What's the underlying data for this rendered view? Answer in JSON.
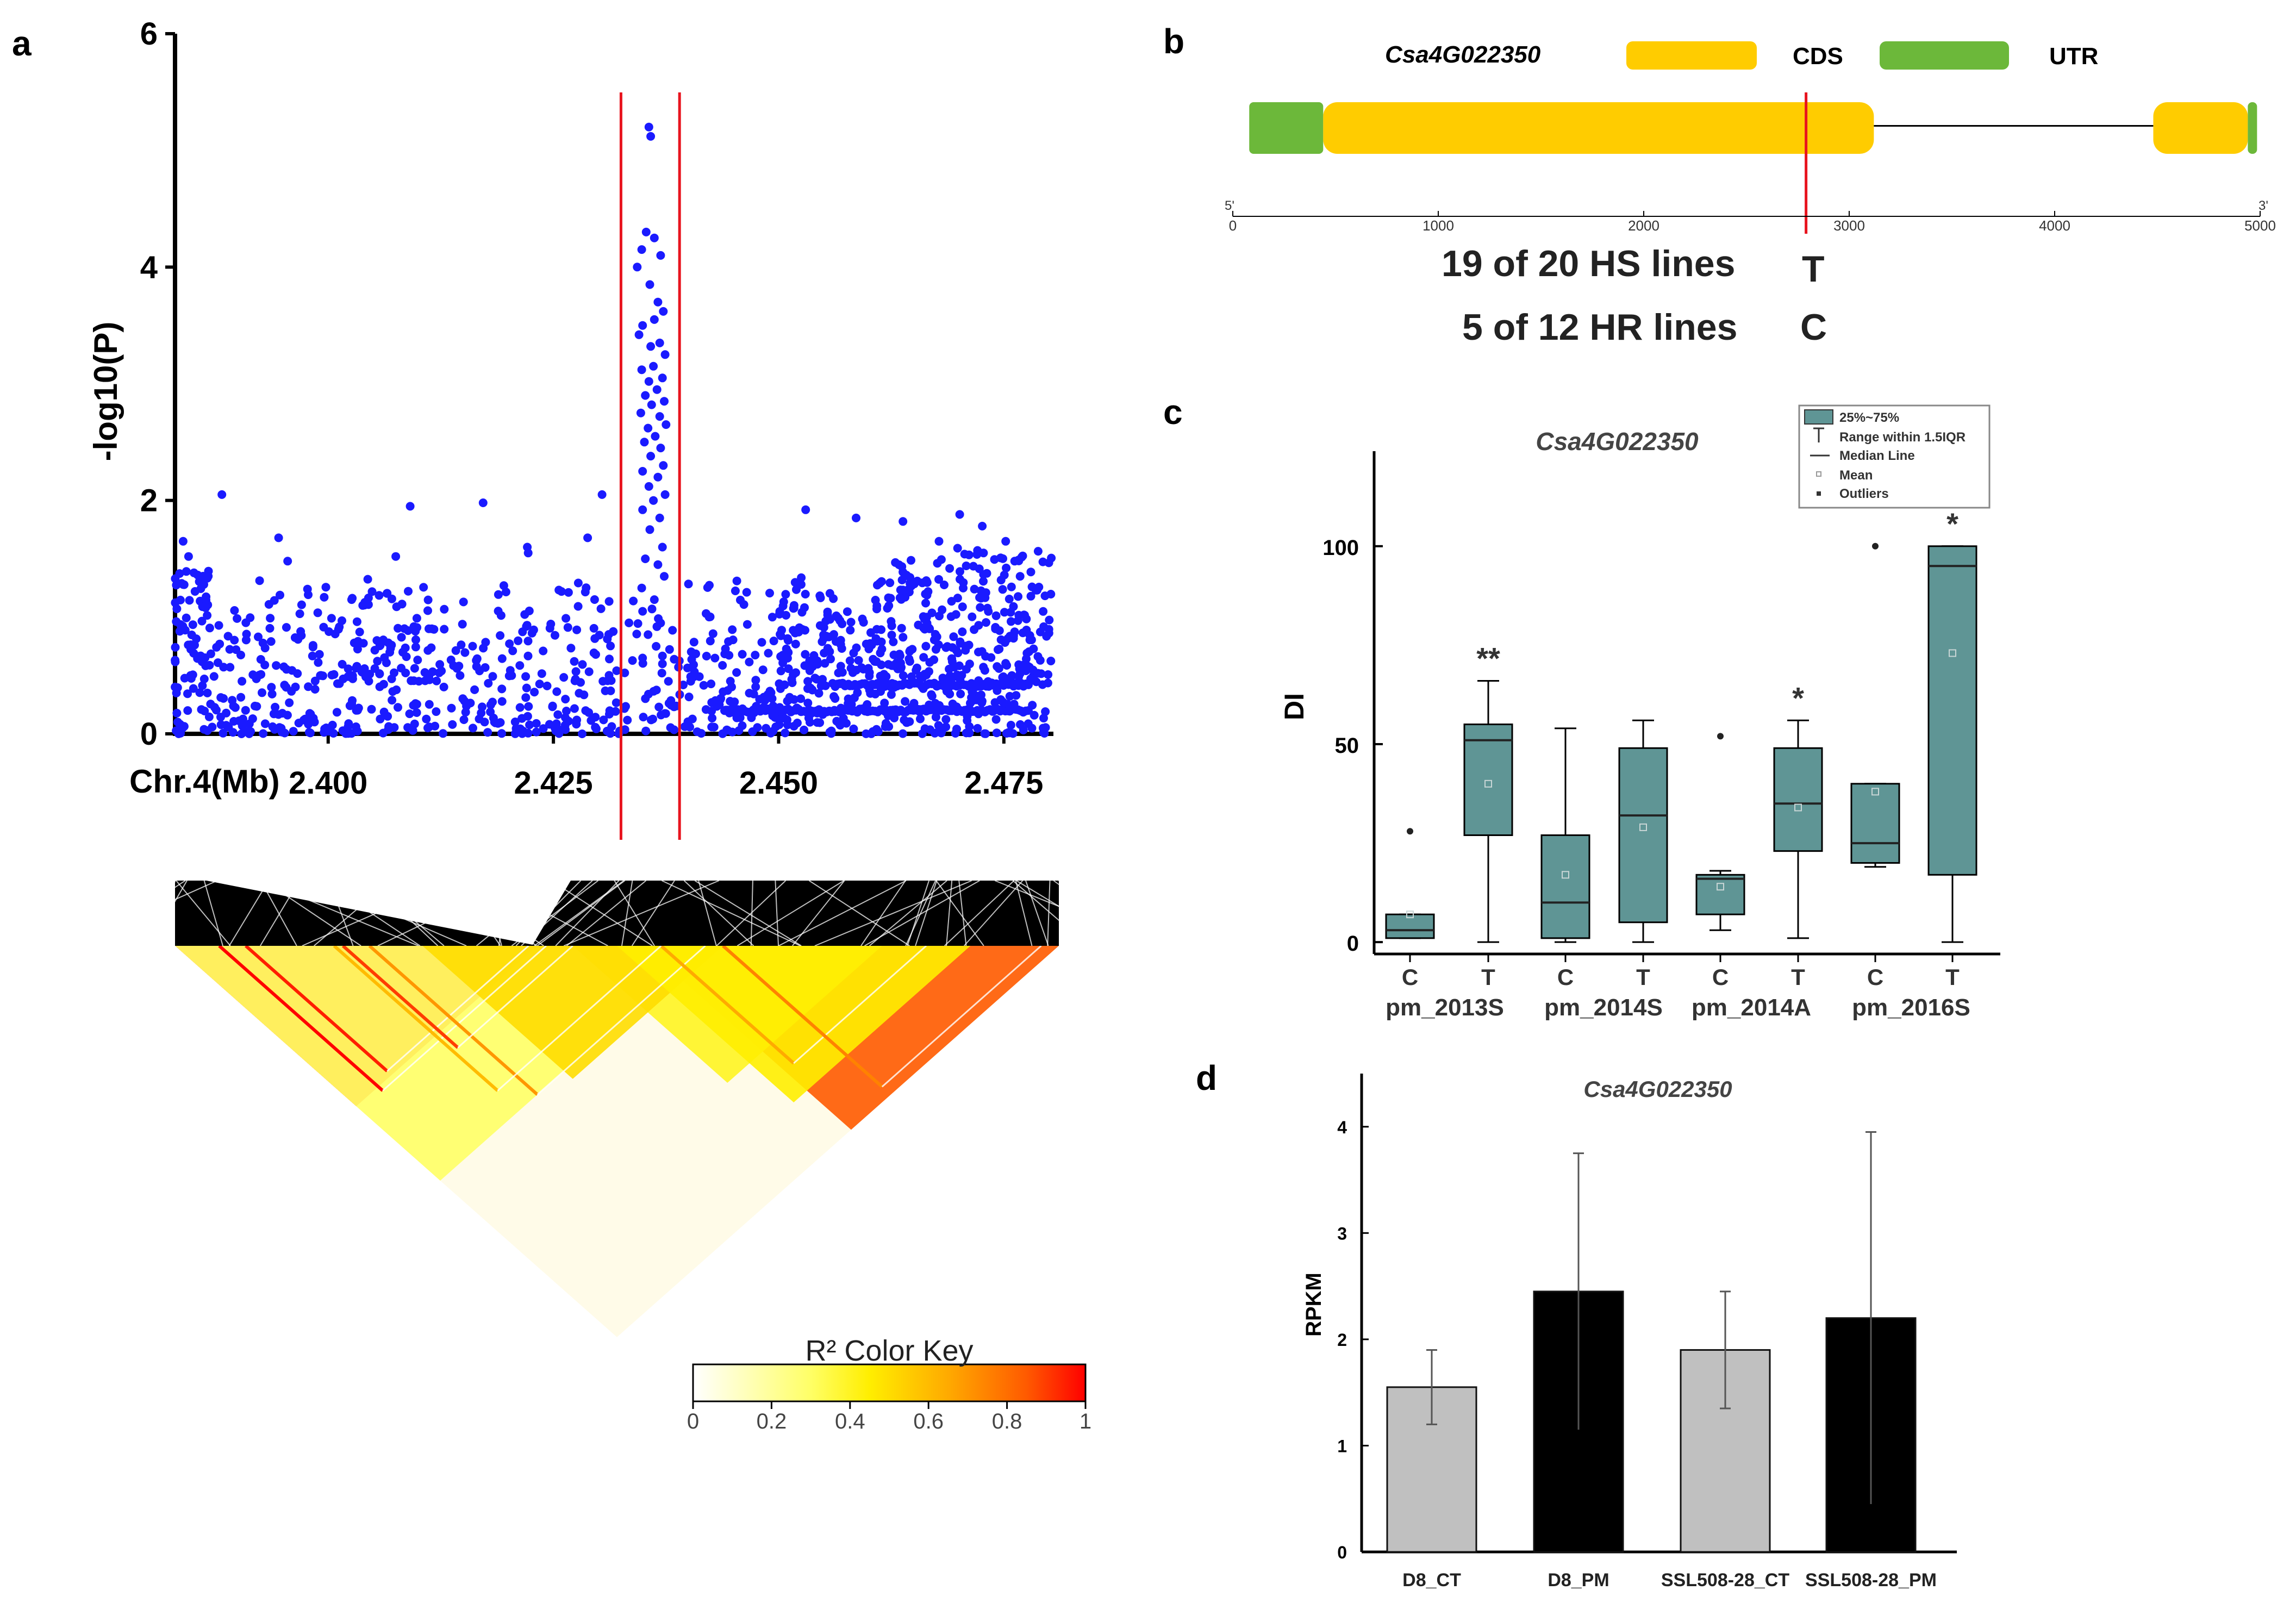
{
  "panels": {
    "a": "a",
    "b": "b",
    "c": "c",
    "d": "d"
  },
  "colors": {
    "dots": "#1a1aff",
    "marker": "#e8141e",
    "cds": "#ffcc00",
    "utr": "#6cb83a",
    "box": "#5f9595",
    "bar_ct": "#c0c0c0",
    "bar_pm": "#000000"
  },
  "chart_data": [
    {
      "id": "a-manhattan",
      "type": "scatter",
      "xlabel": "Chr.4(Mb)",
      "ylabel": "-log10(P)",
      "xlim": [
        2.383,
        2.4805
      ],
      "ylim": [
        0,
        6
      ],
      "xticks": [
        2.4,
        2.425,
        2.45,
        2.475
      ],
      "xtick_labels": [
        "2.400",
        "2.425",
        "2.450",
        "2.475"
      ],
      "yticks": [
        0,
        2,
        4,
        6
      ],
      "ytick_labels": [
        "0",
        "2",
        "4",
        "6"
      ],
      "marker_lines": [
        2.4325,
        2.439
      ],
      "random_seed": 7,
      "background_points_per_band": [
        500,
        300,
        120
      ],
      "background_bands_ylim": [
        [
          0,
          0.45
        ],
        [
          0.45,
          0.9
        ],
        [
          0.9,
          1.35
        ]
      ],
      "highlight_points": [
        [
          2.4356,
          5.2
        ],
        [
          2.4358,
          5.12
        ],
        [
          2.4353,
          4.3
        ],
        [
          2.4362,
          4.25
        ],
        [
          2.4348,
          4.15
        ],
        [
          2.4369,
          4.1
        ],
        [
          2.4343,
          4.0
        ],
        [
          2.4357,
          3.85
        ],
        [
          2.4366,
          3.7
        ],
        [
          2.4372,
          3.62
        ],
        [
          2.4362,
          3.55
        ],
        [
          2.4349,
          3.5
        ],
        [
          2.4345,
          3.42
        ],
        [
          2.4368,
          3.35
        ],
        [
          2.4358,
          3.32
        ],
        [
          2.4374,
          3.25
        ],
        [
          2.4361,
          3.15
        ],
        [
          2.4348,
          3.12
        ],
        [
          2.4371,
          3.05
        ],
        [
          2.4356,
          3.02
        ],
        [
          2.4365,
          2.95
        ],
        [
          2.4352,
          2.9
        ],
        [
          2.4373,
          2.85
        ],
        [
          2.4359,
          2.82
        ],
        [
          2.4347,
          2.75
        ],
        [
          2.4368,
          2.72
        ],
        [
          2.4375,
          2.65
        ],
        [
          2.4355,
          2.62
        ],
        [
          2.4363,
          2.55
        ],
        [
          2.4351,
          2.5
        ],
        [
          2.4369,
          2.45
        ],
        [
          2.4358,
          2.38
        ],
        [
          2.4372,
          2.3
        ],
        [
          2.4349,
          2.25
        ],
        [
          2.4366,
          2.2
        ],
        [
          2.4356,
          2.12
        ],
        [
          2.4374,
          2.05
        ],
        [
          2.4361,
          2.0
        ],
        [
          2.4349,
          1.92
        ],
        [
          2.4368,
          1.85
        ],
        [
          2.4357,
          1.75
        ],
        [
          2.4371,
          1.6
        ],
        [
          2.4352,
          1.5
        ],
        [
          2.4366,
          1.45
        ],
        [
          2.4373,
          1.35
        ],
        [
          2.4348,
          1.25
        ],
        [
          2.4362,
          1.15
        ],
        [
          2.4349,
          1.05
        ],
        [
          2.4369,
          0.95
        ],
        [
          2.4355,
          0.85
        ],
        [
          2.4364,
          0.75
        ],
        [
          2.4349,
          0.65
        ],
        [
          2.4371,
          0.6
        ]
      ],
      "notable_points": [
        [
          2.3882,
          2.05
        ],
        [
          2.3945,
          1.68
        ],
        [
          2.3955,
          1.48
        ],
        [
          2.4026,
          1.15
        ],
        [
          2.4075,
          1.52
        ],
        [
          2.4091,
          1.95
        ],
        [
          2.4172,
          1.98
        ],
        [
          2.4221,
          1.6
        ],
        [
          2.4222,
          1.55
        ],
        [
          2.4288,
          1.68
        ],
        [
          2.4259,
          1.22
        ],
        [
          2.4304,
          2.05
        ],
        [
          2.4297,
          0.68
        ],
        [
          2.453,
          1.92
        ],
        [
          2.4525,
          1.28
        ],
        [
          2.4493,
          1.0
        ],
        [
          2.4586,
          1.85
        ],
        [
          2.4638,
          1.82
        ],
        [
          2.4678,
          1.65
        ],
        [
          2.4701,
          1.88
        ],
        [
          2.4726,
          1.78
        ],
        [
          2.4752,
          1.65
        ],
        [
          2.4762,
          1.48
        ],
        [
          2.4768,
          1.35
        ],
        [
          2.3839,
          1.65
        ],
        [
          2.3845,
          1.52
        ],
        [
          2.3851,
          1.38
        ],
        [
          2.3862,
          1.28
        ]
      ],
      "clusters": [
        {
          "xlim": [
            2.4605,
            2.4805
          ],
          "ylim": [
            0.4,
            1.6
          ],
          "n": 180
        },
        {
          "xlim": [
            2.45,
            2.46
          ],
          "ylim": [
            0.4,
            1.2
          ],
          "n": 60
        },
        {
          "xlim": [
            2.383,
            2.387
          ],
          "ylim": [
            0.6,
            1.4
          ],
          "n": 40
        },
        {
          "xlim": [
            2.399,
            2.413
          ],
          "ylim": [
            0.45,
            1.25
          ],
          "n": 50
        }
      ],
      "hlines": [
        {
          "xlim": [
            2.444,
            2.478
          ],
          "y": 0.2,
          "n": 120
        },
        {
          "xlim": [
            2.456,
            2.478
          ],
          "y": 0.42,
          "n": 80
        }
      ]
    },
    {
      "id": "a-ld",
      "type": "heatmap",
      "legend_title": "R² Color Key",
      "legend_ticks": [
        "0",
        "0.2",
        "0.4",
        "0.6",
        "0.8",
        "1"
      ],
      "blocks": [
        {
          "from": 0.0,
          "to": 0.41,
          "r2": 0.88
        },
        {
          "from": 0.53,
          "to": 1.0,
          "r2": 0.85
        },
        {
          "from": 0.0,
          "to": 0.6,
          "r2": 0.3
        },
        {
          "from": 0.45,
          "to": 0.8,
          "r2": 0.4
        },
        {
          "from": 0.28,
          "to": 0.62,
          "r2": 0.5
        },
        {
          "from": 0.5,
          "to": 0.9,
          "r2": 0.45
        }
      ],
      "band_lines": [
        {
          "from": 0.05,
          "to": 0.42,
          "r2": 1.0
        },
        {
          "from": 0.08,
          "to": 0.4,
          "r2": 0.95
        },
        {
          "from": 0.22,
          "to": 0.6,
          "r2": 0.7
        },
        {
          "from": 0.19,
          "to": 0.45,
          "r2": 0.9
        },
        {
          "from": 0.55,
          "to": 0.85,
          "r2": 0.65
        },
        {
          "from": 0.18,
          "to": 0.55,
          "r2": 0.6
        },
        {
          "from": 0.62,
          "to": 0.98,
          "r2": 0.75
        }
      ]
    },
    {
      "id": "b-gene",
      "type": "gene-structure",
      "gene": "Csa4G022350",
      "legend": [
        {
          "label": "CDS",
          "feature": "cds"
        },
        {
          "label": "UTR",
          "feature": "utr"
        }
      ],
      "scale_ticks": [
        0,
        1000,
        2000,
        3000,
        4000,
        5000
      ],
      "scale_ends": [
        "5'",
        "3'"
      ],
      "features": [
        {
          "type": "utr",
          "start": 80,
          "end": 440
        },
        {
          "type": "cds",
          "start": 440,
          "end": 3120
        },
        {
          "type": "intron",
          "start": 3120,
          "end": 4480
        },
        {
          "type": "cds",
          "start": 4480,
          "end": 4940
        },
        {
          "type": "utr",
          "start": 4940,
          "end": 4985
        }
      ],
      "snp_position": 2790,
      "snp_annotations": [
        {
          "text": "19 of 20 HS lines",
          "allele": "T"
        },
        {
          "text": "5 of 12 HR lines",
          "allele": "C"
        }
      ]
    },
    {
      "id": "c-boxplot",
      "type": "box",
      "title": "Csa4G022350",
      "ylabel": "DI",
      "ylim": [
        -3,
        124
      ],
      "yticks": [
        0,
        50,
        100
      ],
      "legend": [
        "25%~75%",
        "Range within 1.5IQR",
        "Median Line",
        "Mean",
        "Outliers"
      ],
      "groups": [
        "pm_2013S",
        "pm_2014S",
        "pm_2014A",
        "pm_2016S"
      ],
      "boxes": [
        {
          "label": "C",
          "group": "pm_2013S",
          "min": 1,
          "q1": 1,
          "median": 3,
          "q3": 7,
          "max": 7,
          "mean": 7,
          "outliers": [
            28
          ],
          "sig": ""
        },
        {
          "label": "T",
          "group": "pm_2013S",
          "min": 0,
          "q1": 27,
          "median": 51,
          "q3": 55,
          "max": 66,
          "mean": 40,
          "outliers": [],
          "sig": "**"
        },
        {
          "label": "C",
          "group": "pm_2014S",
          "min": 0,
          "q1": 1,
          "median": 10,
          "q3": 27,
          "max": 54,
          "mean": 17,
          "outliers": [],
          "sig": ""
        },
        {
          "label": "T",
          "group": "pm_2014S",
          "min": 0,
          "q1": 5,
          "median": 32,
          "q3": 49,
          "max": 56,
          "mean": 29,
          "outliers": [],
          "sig": ""
        },
        {
          "label": "C",
          "group": "pm_2014A",
          "min": 3,
          "q1": 7,
          "median": 16,
          "q3": 17,
          "max": 18,
          "mean": 14,
          "outliers": [
            52
          ],
          "sig": ""
        },
        {
          "label": "T",
          "group": "pm_2014A",
          "min": 1,
          "q1": 23,
          "median": 35,
          "q3": 49,
          "max": 56,
          "mean": 34,
          "outliers": [],
          "sig": "*"
        },
        {
          "label": "C",
          "group": "pm_2016S",
          "min": 19,
          "q1": 20,
          "median": 25,
          "q3": 40,
          "max": 40,
          "mean": 38,
          "outliers": [
            100
          ],
          "sig": ""
        },
        {
          "label": "T",
          "group": "pm_2016S",
          "min": 0,
          "q1": 17,
          "median": 95,
          "q3": 100,
          "max": 100,
          "mean": 73,
          "outliers": [],
          "sig": "*"
        }
      ]
    },
    {
      "id": "d-bar",
      "type": "bar",
      "title": "Csa4G022350",
      "ylabel": "RPKM",
      "ylim": [
        0,
        4.5
      ],
      "yticks": [
        0,
        1,
        2,
        3,
        4
      ],
      "categories": [
        "D8_CT",
        "D8_PM",
        "SSL508-28_CT",
        "SSL508-28_PM"
      ],
      "values": [
        1.55,
        2.45,
        1.9,
        2.2
      ],
      "errors": [
        0.35,
        1.3,
        0.55,
        1.75
      ],
      "bar_colors": [
        "#c0c0c0",
        "#000000",
        "#c0c0c0",
        "#000000"
      ]
    }
  ]
}
